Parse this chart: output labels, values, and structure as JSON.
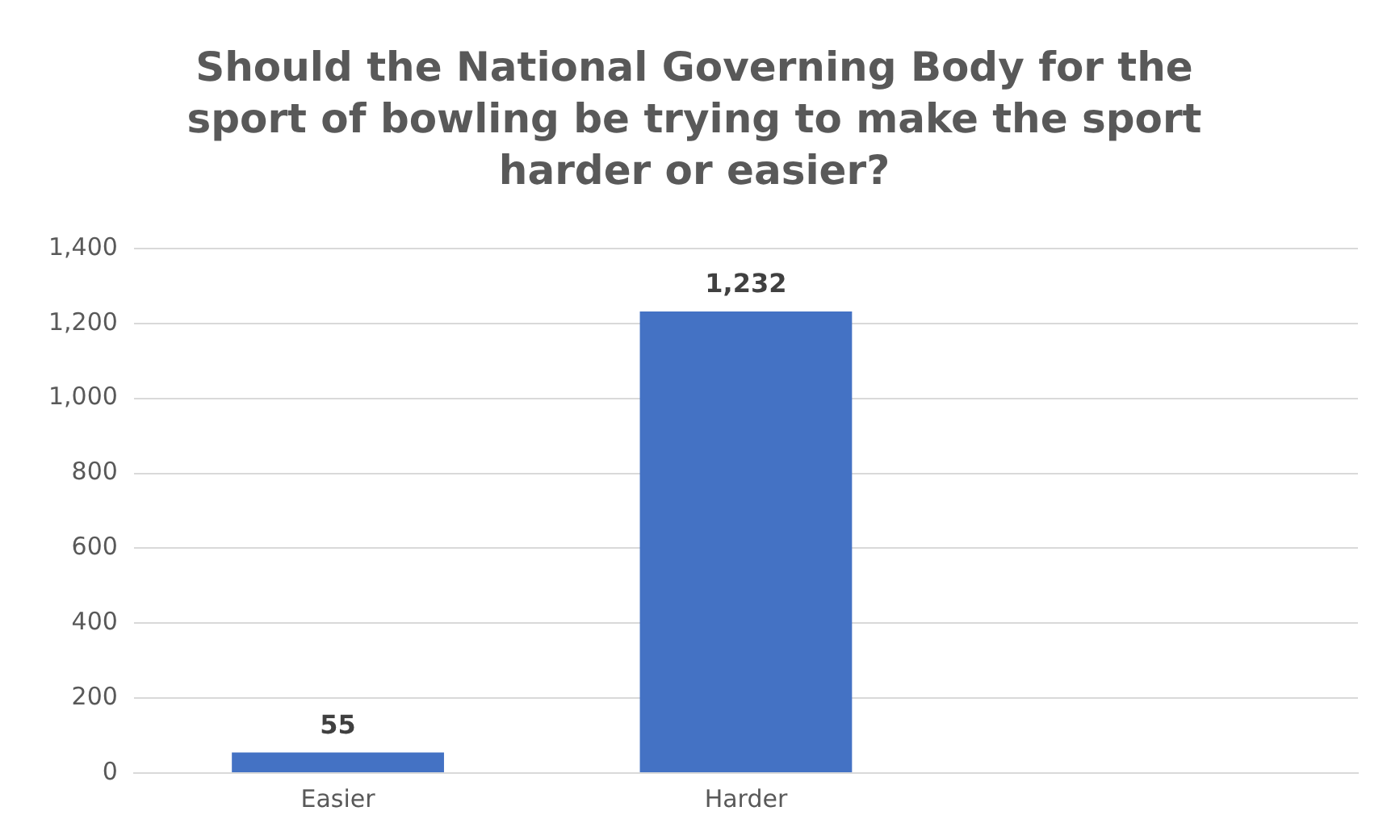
{
  "chart_data": {
    "type": "bar",
    "title": "Should the National Governing Body for the sport of bowling be trying to make the sport harder or easier?",
    "categories": [
      "Easier",
      "Harder",
      null
    ],
    "values": [
      55,
      1232,
      null
    ],
    "value_labels": [
      "55",
      "1,232",
      null
    ],
    "color": "#4472c4",
    "ylim": [
      0,
      1400
    ],
    "yticks": [
      0,
      200,
      400,
      600,
      800,
      {
        "value": 1000,
        "label": "1,000"
      },
      {
        "value": 1200,
        "label": "1,200"
      },
      {
        "value": 1400,
        "label": "1,400"
      }
    ],
    "grid": "y",
    "legend": false
  }
}
